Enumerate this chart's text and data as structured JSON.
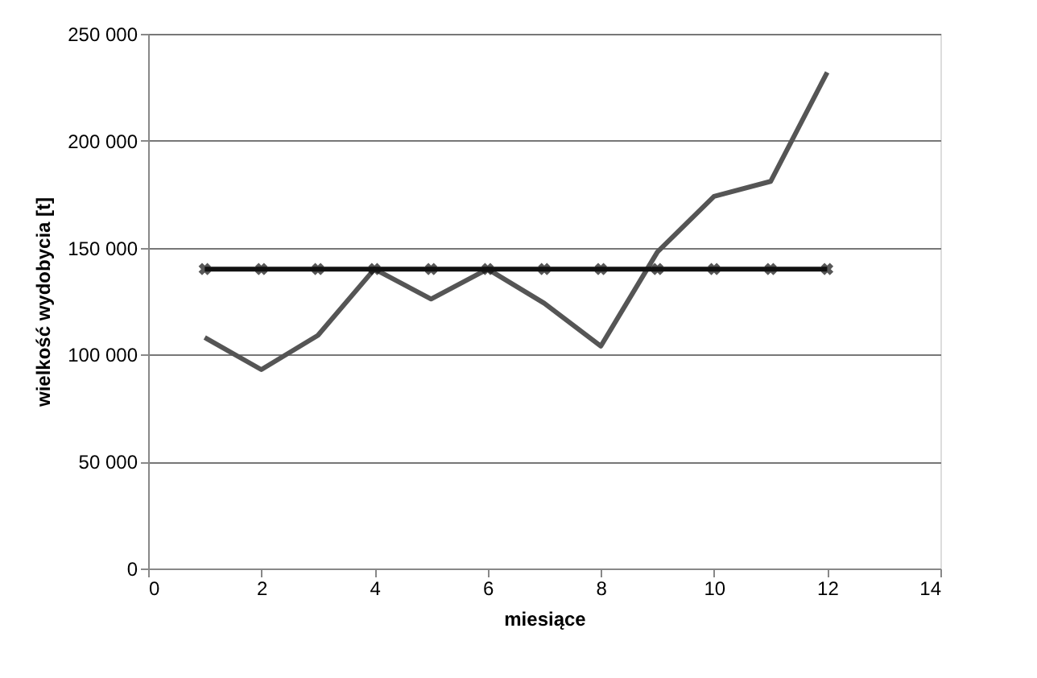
{
  "chart_data": {
    "type": "line",
    "xlabel": "miesiące",
    "ylabel": "wielkość wydobycia [t]",
    "x": [
      1,
      2,
      3,
      4,
      5,
      6,
      7,
      8,
      9,
      10,
      11,
      12
    ],
    "series": [
      {
        "color": "#555555",
        "values": [
          108000,
          93000,
          109000,
          140000,
          126000,
          140000,
          124000,
          104000,
          148000,
          174000,
          181000,
          232000
        ]
      },
      {
        "color": "#111111",
        "values": [
          140000,
          140000,
          140000,
          140000,
          140000,
          140000,
          140000,
          140000,
          140000,
          140000,
          140000,
          140000
        ],
        "marker": "cross"
      }
    ],
    "xlim": [
      0,
      14
    ],
    "xticks": [
      0,
      2,
      4,
      6,
      8,
      10,
      12,
      14
    ],
    "ylim": [
      0,
      250000
    ],
    "yticks": [
      0,
      {
        "value": 50000,
        "label": "50 000"
      },
      {
        "value": 100000,
        "label": "100 000"
      },
      {
        "value": 150000,
        "label": "150 000"
      },
      {
        "value": 200000,
        "label": "200 000"
      },
      {
        "value": 250000,
        "label": "250 000"
      }
    ],
    "grid": "y"
  }
}
